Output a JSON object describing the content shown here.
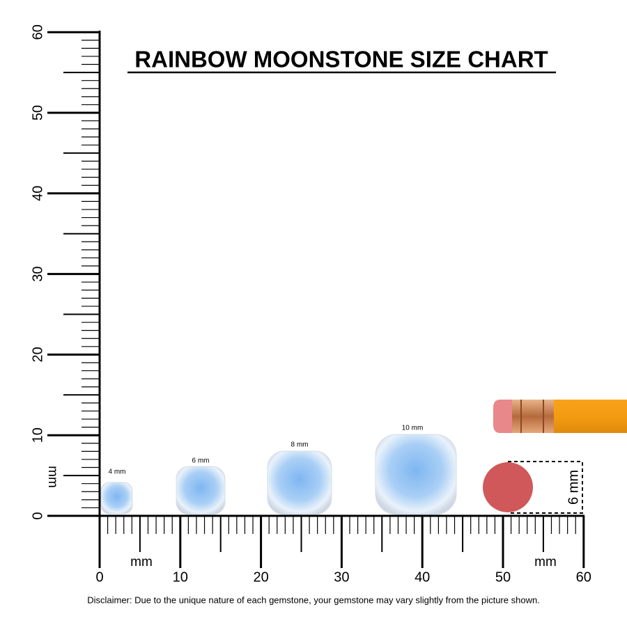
{
  "header": {
    "title": "RAINBOW MOONSTONE SIZE CHART"
  },
  "ruler": {
    "vertical_labels": [
      "0",
      "10",
      "20",
      "30",
      "40",
      "50",
      "60"
    ],
    "horizontal_labels": [
      "0",
      "10",
      "20",
      "30",
      "40",
      "50",
      "60"
    ],
    "vertical_unit": "mm",
    "horizontal_unit_left": "mm",
    "horizontal_unit_right": "mm"
  },
  "gems": [
    {
      "label": "4 mm"
    },
    {
      "label": "6 mm"
    },
    {
      "label": "8 mm"
    },
    {
      "label": "10 mm"
    }
  ],
  "eraser": {
    "label": "6 mm"
  },
  "footer": {
    "disclaimer": "Disclaimer: Due to the unique nature of each gemstone, your gemstone may vary slightly from the picture shown."
  }
}
